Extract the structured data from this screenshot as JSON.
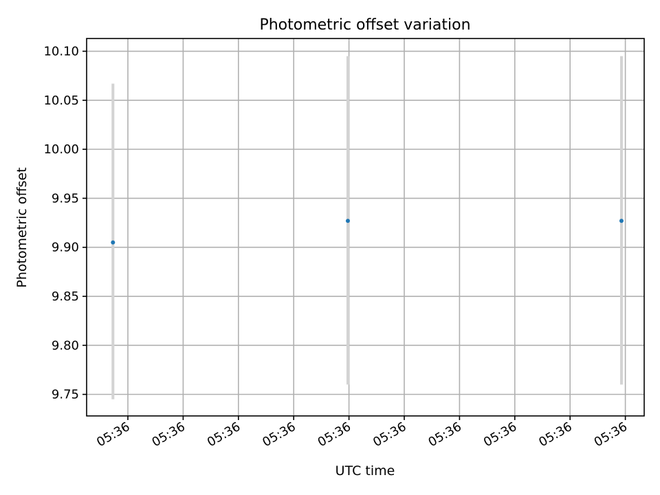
{
  "chart_data": {
    "type": "scatter",
    "title": "Photometric offset variation",
    "xlabel": "UTC time",
    "ylabel": "Photometric offset",
    "grid": true,
    "ylim": [
      9.728,
      10.113
    ],
    "yticks": [
      9.75,
      9.8,
      9.85,
      9.9,
      9.95,
      10.0,
      10.05,
      10.1
    ],
    "ytick_labels": [
      "9.75",
      "9.80",
      "9.85",
      "9.90",
      "9.95",
      "10.00",
      "10.05",
      "10.10"
    ],
    "xtick_labels": [
      "05:36",
      "05:36",
      "05:36",
      "05:36",
      "05:36",
      "05:36",
      "05:36",
      "05:36",
      "05:36",
      "05:36"
    ],
    "points": [
      {
        "tick_pos": -0.27,
        "y": 9.905,
        "err_low": 9.745,
        "err_high": 10.067
      },
      {
        "tick_pos": 3.98,
        "y": 9.927,
        "err_low": 9.76,
        "err_high": 10.095
      },
      {
        "tick_pos": 8.93,
        "y": 9.927,
        "err_low": 9.76,
        "err_high": 10.095
      }
    ],
    "colors": {
      "marker": "#1f77b4",
      "errorbar": "#d3d3d3",
      "grid": "#b0b0b0"
    }
  }
}
